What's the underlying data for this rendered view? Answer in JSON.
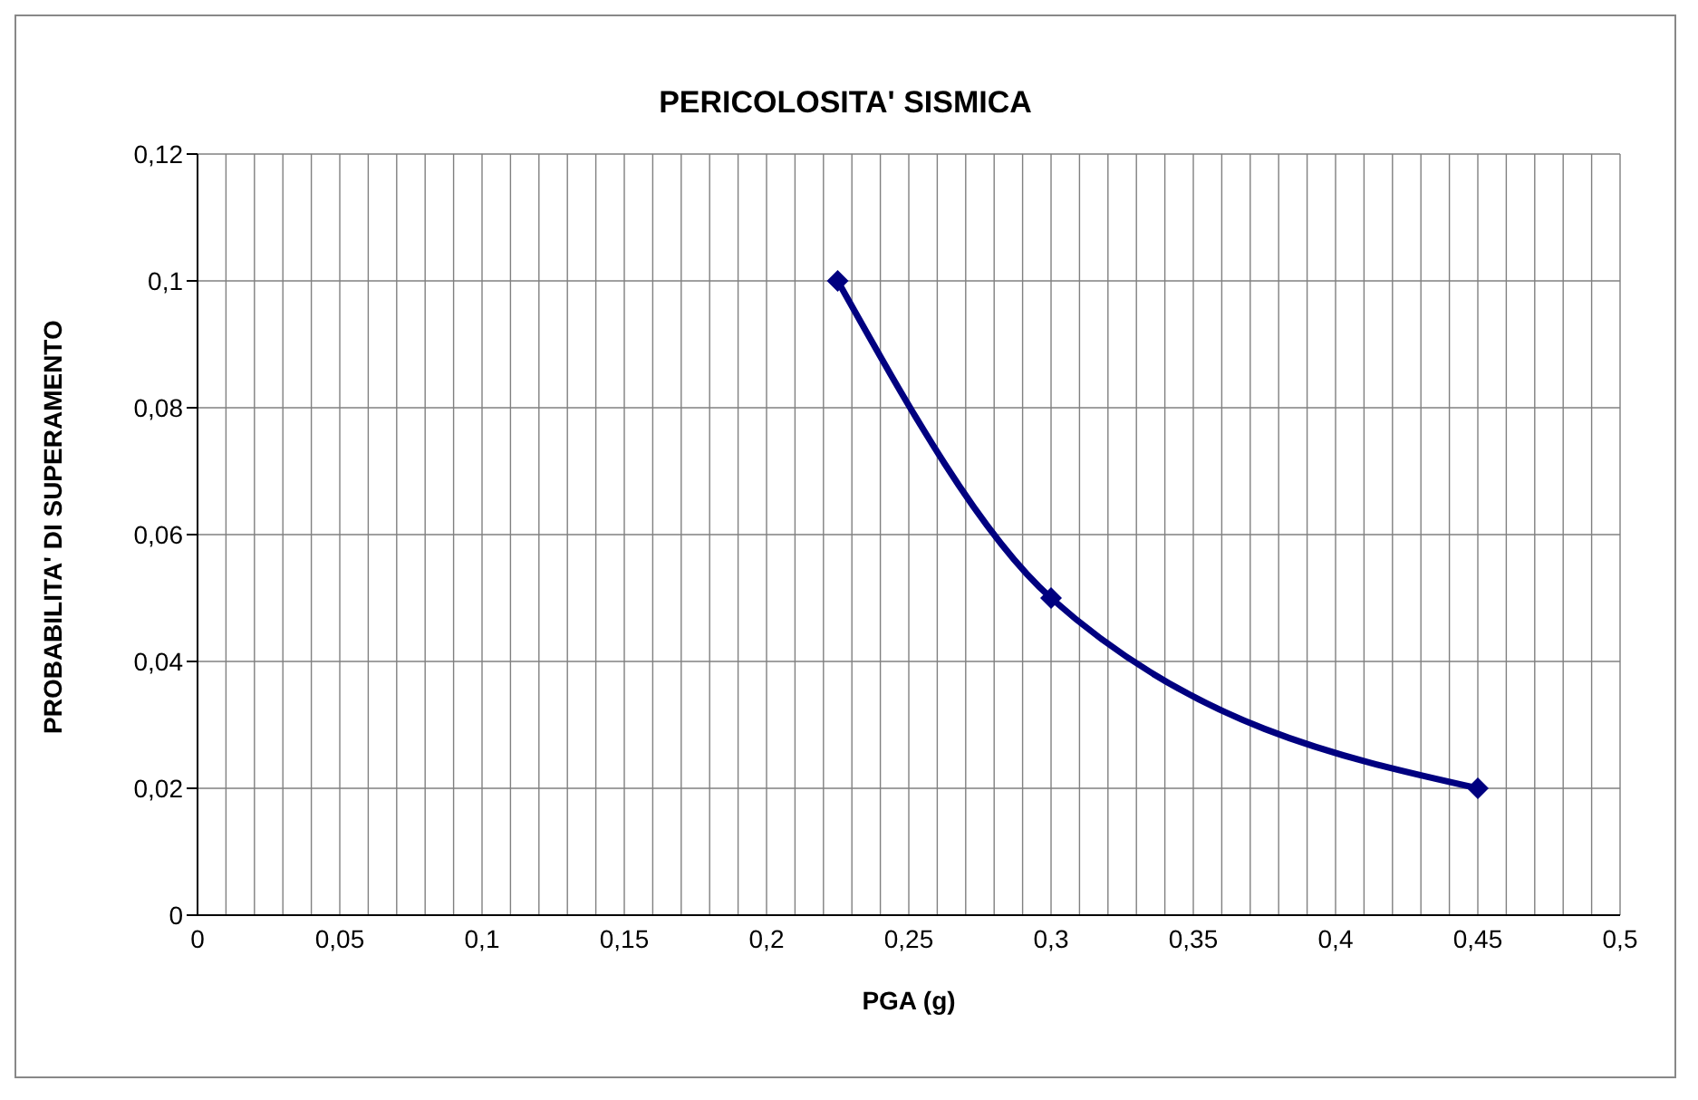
{
  "chart_data": {
    "type": "line",
    "title": "PERICOLOSITA' SISMICA",
    "xlabel": "PGA (g)",
    "ylabel": "PROBABILITA' DI SUPERAMENTO",
    "x": [
      0.225,
      0.3,
      0.45
    ],
    "series": [
      {
        "color": "#000080",
        "values": [
          0.1,
          0.05,
          0.02
        ]
      }
    ],
    "xlim": [
      0,
      0.5
    ],
    "xticks": [
      0,
      {
        "value": 0.01,
        "label": null
      },
      {
        "value": 0.02,
        "label": null
      },
      {
        "value": 0.03,
        "label": null
      },
      {
        "value": 0.04,
        "label": null
      },
      {
        "value": 0.05,
        "label": "0,05"
      },
      {
        "value": 0.06,
        "label": null
      },
      {
        "value": 0.07,
        "label": null
      },
      {
        "value": 0.08,
        "label": null
      },
      {
        "value": 0.09,
        "label": null
      },
      {
        "value": 0.1,
        "label": "0,1"
      },
      {
        "value": 0.11,
        "label": null
      },
      {
        "value": 0.12,
        "label": null
      },
      {
        "value": 0.13,
        "label": null
      },
      {
        "value": 0.14,
        "label": null
      },
      {
        "value": 0.15,
        "label": "0,15"
      },
      {
        "value": 0.16,
        "label": null
      },
      {
        "value": 0.17,
        "label": null
      },
      {
        "value": 0.18,
        "label": null
      },
      {
        "value": 0.19,
        "label": null
      },
      {
        "value": 0.2,
        "label": "0,2"
      },
      {
        "value": 0.21,
        "label": null
      },
      {
        "value": 0.22,
        "label": null
      },
      {
        "value": 0.23,
        "label": null
      },
      {
        "value": 0.24,
        "label": null
      },
      {
        "value": 0.25,
        "label": "0,25"
      },
      {
        "value": 0.26,
        "label": null
      },
      {
        "value": 0.27,
        "label": null
      },
      {
        "value": 0.28,
        "label": null
      },
      {
        "value": 0.29,
        "label": null
      },
      {
        "value": 0.3,
        "label": "0,3"
      },
      {
        "value": 0.31,
        "label": null
      },
      {
        "value": 0.32,
        "label": null
      },
      {
        "value": 0.33,
        "label": null
      },
      {
        "value": 0.34,
        "label": null
      },
      {
        "value": 0.35,
        "label": "0,35"
      },
      {
        "value": 0.36,
        "label": null
      },
      {
        "value": 0.37,
        "label": null
      },
      {
        "value": 0.38,
        "label": null
      },
      {
        "value": 0.39,
        "label": null
      },
      {
        "value": 0.4,
        "label": "0,4"
      },
      {
        "value": 0.41,
        "label": null
      },
      {
        "value": 0.42,
        "label": null
      },
      {
        "value": 0.43,
        "label": null
      },
      {
        "value": 0.44,
        "label": null
      },
      {
        "value": 0.45,
        "label": "0,45"
      },
      {
        "value": 0.46,
        "label": null
      },
      {
        "value": 0.47,
        "label": null
      },
      {
        "value": 0.48,
        "label": null
      },
      {
        "value": 0.49,
        "label": null
      },
      {
        "value": 0.5,
        "label": "0,5"
      }
    ],
    "ylim": [
      0,
      0.12
    ],
    "yticks": [
      0,
      {
        "value": 0.02,
        "label": "0,02"
      },
      {
        "value": 0.04,
        "label": "0,04"
      },
      {
        "value": 0.06,
        "label": "0,06"
      },
      {
        "value": 0.08,
        "label": "0,08"
      },
      {
        "value": 0.1,
        "label": "0,1"
      },
      {
        "value": 0.12,
        "label": "0,12"
      }
    ],
    "grid": true,
    "marker": "diamond",
    "line_style": "solid",
    "legend": false
  }
}
